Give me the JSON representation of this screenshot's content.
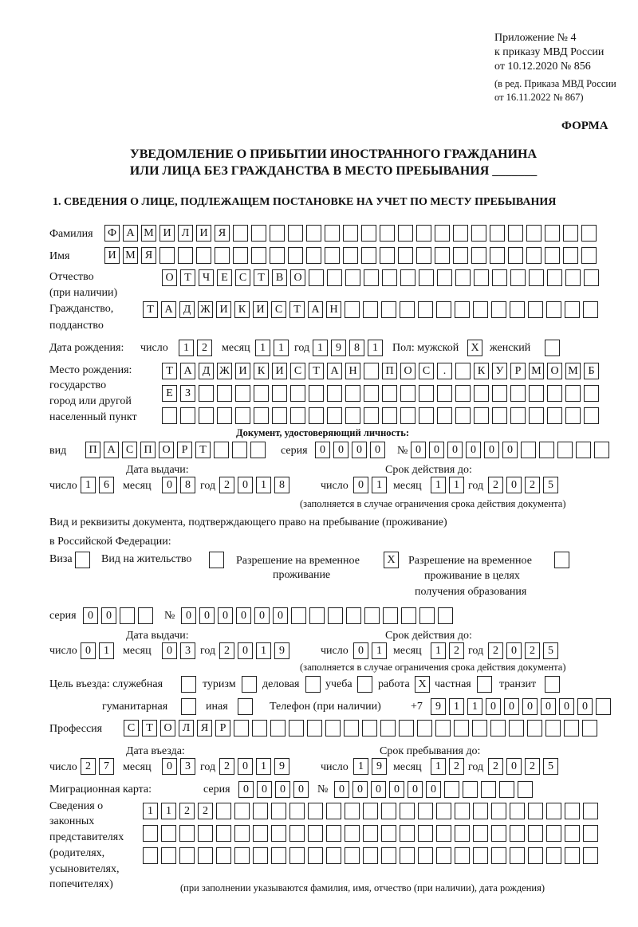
{
  "header": {
    "appendix": "Приложение № 4",
    "order": "к приказу МВД России",
    "order_date": "от 10.12.2020 № 856",
    "edition1": "(в ред. Приказа МВД России",
    "edition2": "от 16.11.2022 № 867)",
    "form_label": "ФОРМА",
    "title1": "УВЕДОМЛЕНИЕ О ПРИБЫТИИ ИНОСТРАННОГО ГРАЖДАНИНА",
    "title2": "ИЛИ ЛИЦА БЕЗ ГРАЖДАНСТВА В МЕСТО ПРЕБЫВАНИЯ _______",
    "section1": "1. СВЕДЕНИЯ О ЛИЦЕ, ПОДЛЕЖАЩЕМ ПОСТАНОВКЕ НА УЧЕТ ПО МЕСТУ ПРЕБЫВАНИЯ"
  },
  "labels": {
    "surname": "Фамилия",
    "name": "Имя",
    "patronymic": "Отчество",
    "patronymic2": "(при наличии)",
    "citizenship": "Гражданство,",
    "citizenship2": "подданство",
    "birth_date": "Дата рождения:",
    "day": "число",
    "month": "месяц",
    "year": "год",
    "sex": "Пол: мужской",
    "female": "женский",
    "birth_place": "Место рождения:",
    "birth_place2": "государство",
    "birth_place3": "город или другой",
    "birth_place4": "населенный пункт",
    "id_doc": "Документ, удостоверяющий личность:",
    "kind": "вид",
    "series": "серия",
    "number": "№",
    "issue_date": "Дата выдачи:",
    "valid_until": "Срок действия до:",
    "validity_note": "(заполняется в случае ограничения срока действия документа)",
    "stay_doc1": "Вид и реквизиты документа, подтверждающего право на пребывание (проживание)",
    "stay_doc2": "в Российской Федерации:",
    "visa": "Виза",
    "residence": "Вид на жительство",
    "trp1": "Разрешение на временное",
    "trp2": "проживание",
    "trp_edu1": "Разрешение на временное",
    "trp_edu2": "проживание в целях",
    "trp_edu3": "получения образования",
    "purpose": "Цель въезда: служебная",
    "tourism": "туризм",
    "business": "деловая",
    "study": "учеба",
    "work": "работа",
    "private": "частная",
    "transit": "транзит",
    "humanitarian": "гуманитарная",
    "other": "иная",
    "phone": "Телефон (при наличии)",
    "phone_prefix": "+7",
    "profession": "Профессия",
    "entry_date": "Дата въезда:",
    "stay_until": "Срок пребывания до:",
    "migration_card": "Миграционная карта:",
    "reps1": "Сведения о",
    "reps2": "законных",
    "reps3": "представителях",
    "reps4": "(родителях,",
    "reps5": "усыновителях,",
    "reps6": "попечителях)",
    "reps_note": "(при заполнении указываются фамилия, имя, отчество (при наличии), дата рождения)"
  },
  "fields": {
    "surname": "ФАМИЛИЯ",
    "name": "ИМЯ",
    "patronymic": "ОТЧЕСТВО",
    "citizenship": "ТАДЖИКИСТАН",
    "birth_day": "12",
    "birth_month": "11",
    "birth_year": "1981",
    "sex_male": "X",
    "sex_female": "",
    "birth_place_1": "ТАДЖИКИСТАН ПОС. КУРМОМБ",
    "birth_place_2": "ЕЗ",
    "birth_place_3": "",
    "id_kind": "ПАСПОРТ",
    "id_series": "0000",
    "id_number": "000000",
    "id_issue_day": "16",
    "id_issue_month": "08",
    "id_issue_year": "2018",
    "id_valid_day": "01",
    "id_valid_month": "11",
    "id_valid_year": "2025",
    "visa": "",
    "residence": "",
    "trp": "X",
    "trp_edu": "",
    "stay_series": "00",
    "stay_number": "000000",
    "stay_issue_day": "01",
    "stay_issue_month": "03",
    "stay_issue_year": "2019",
    "stay_valid_day": "01",
    "stay_valid_month": "12",
    "stay_valid_year": "2025",
    "p_service": "",
    "p_tourism": "",
    "p_business": "",
    "p_study": "",
    "p_work": "X",
    "p_private": "",
    "p_transit": "",
    "p_humanitarian": "",
    "p_other": "",
    "phone": "911000000",
    "profession": "СТОЛЯР",
    "entry_day": "27",
    "entry_month": "03",
    "entry_year": "2019",
    "stay_day": "19",
    "stay_month": "12",
    "stay_year": "2025",
    "mc_series": "0000",
    "mc_number": "000000",
    "reps_1": "1122",
    "reps_2": "",
    "reps_3": ""
  }
}
